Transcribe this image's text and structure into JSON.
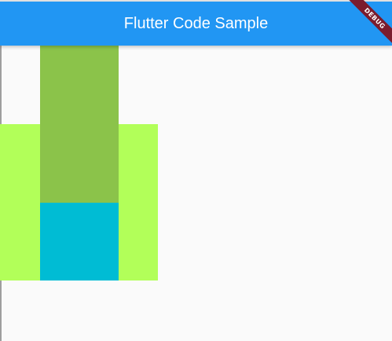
{
  "app_bar": {
    "title": "Flutter Code Sample",
    "color": "#2196F3"
  },
  "debug_banner": {
    "label": "DEBUG",
    "color": "#7B1C2E"
  },
  "boxes": {
    "outer_color": "#B2FF59",
    "tall_color": "#8BC34A",
    "bottom_color": "#00BCD4"
  }
}
